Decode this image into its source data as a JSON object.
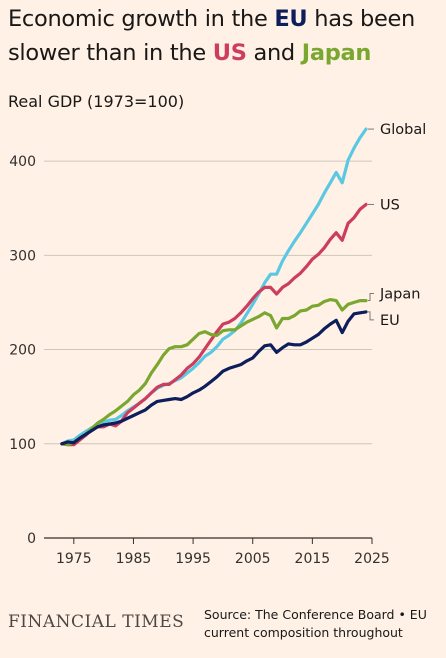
{
  "header": {
    "title_parts": [
      {
        "text": "Economic growth in the ",
        "color": ""
      },
      {
        "text": "EU",
        "color": "#0d1e5c"
      },
      {
        "text": " has been slower than in the ",
        "color": ""
      },
      {
        "text": "US",
        "color": "#cc3d5e"
      },
      {
        "text": " and ",
        "color": ""
      },
      {
        "text": "Japan",
        "color": "#7aa72f"
      }
    ],
    "subtitle": "Real GDP (1973=100)"
  },
  "footer": {
    "brand": "FINANCIAL TIMES",
    "source": "Source: The Conference Board • EU current composition throughout"
  },
  "chart_data": {
    "type": "line",
    "title": "Economic growth in the EU has been slower than in the US and Japan",
    "ylabel": "Real GDP (1973=100)",
    "xlim": [
      1970,
      2025
    ],
    "ylim": [
      0,
      450
    ],
    "x_ticks": [
      1975,
      1985,
      1995,
      2005,
      2015,
      2025
    ],
    "y_ticks": [
      0,
      100,
      200,
      300,
      400
    ],
    "grid": true,
    "legend": "direct labels at line ends",
    "series": [
      {
        "name": "Global",
        "color": "#5bc8e3",
        "points": [
          [
            1973,
            100
          ],
          [
            1974,
            103
          ],
          [
            1975,
            104
          ],
          [
            1976,
            109
          ],
          [
            1977,
            113
          ],
          [
            1978,
            117
          ],
          [
            1979,
            121
          ],
          [
            1980,
            123
          ],
          [
            1981,
            125
          ],
          [
            1982,
            126
          ],
          [
            1983,
            130
          ],
          [
            1984,
            135
          ],
          [
            1985,
            139
          ],
          [
            1986,
            143
          ],
          [
            1987,
            148
          ],
          [
            1988,
            154
          ],
          [
            1989,
            159
          ],
          [
            1990,
            162
          ],
          [
            1991,
            164
          ],
          [
            1992,
            167
          ],
          [
            1993,
            170
          ],
          [
            1994,
            175
          ],
          [
            1995,
            180
          ],
          [
            1996,
            186
          ],
          [
            1997,
            193
          ],
          [
            1998,
            197
          ],
          [
            1999,
            203
          ],
          [
            2000,
            211
          ],
          [
            2001,
            215
          ],
          [
            2002,
            220
          ],
          [
            2003,
            228
          ],
          [
            2004,
            238
          ],
          [
            2005,
            248
          ],
          [
            2006,
            259
          ],
          [
            2007,
            271
          ],
          [
            2008,
            280
          ],
          [
            2009,
            280
          ],
          [
            2010,
            294
          ],
          [
            2011,
            305
          ],
          [
            2012,
            315
          ],
          [
            2013,
            324
          ],
          [
            2014,
            334
          ],
          [
            2015,
            344
          ],
          [
            2016,
            354
          ],
          [
            2017,
            366
          ],
          [
            2018,
            377
          ],
          [
            2019,
            388
          ],
          [
            2020,
            377
          ],
          [
            2021,
            401
          ],
          [
            2022,
            414
          ],
          [
            2023,
            425
          ],
          [
            2024,
            434
          ]
        ]
      },
      {
        "name": "US",
        "color": "#cc3d5e",
        "points": [
          [
            1973,
            100
          ],
          [
            1974,
            99
          ],
          [
            1975,
            99
          ],
          [
            1976,
            104
          ],
          [
            1977,
            109
          ],
          [
            1978,
            115
          ],
          [
            1979,
            118
          ],
          [
            1980,
            118
          ],
          [
            1981,
            121
          ],
          [
            1982,
            119
          ],
          [
            1983,
            124
          ],
          [
            1984,
            133
          ],
          [
            1985,
            138
          ],
          [
            1986,
            143
          ],
          [
            1987,
            148
          ],
          [
            1988,
            154
          ],
          [
            1989,
            160
          ],
          [
            1990,
            163
          ],
          [
            1991,
            163
          ],
          [
            1992,
            168
          ],
          [
            1993,
            173
          ],
          [
            1994,
            180
          ],
          [
            1995,
            185
          ],
          [
            1996,
            192
          ],
          [
            1997,
            201
          ],
          [
            1998,
            210
          ],
          [
            1999,
            219
          ],
          [
            2000,
            227
          ],
          [
            2001,
            229
          ],
          [
            2002,
            233
          ],
          [
            2003,
            239
          ],
          [
            2004,
            246
          ],
          [
            2005,
            254
          ],
          [
            2006,
            261
          ],
          [
            2007,
            266
          ],
          [
            2008,
            266
          ],
          [
            2009,
            259
          ],
          [
            2010,
            266
          ],
          [
            2011,
            270
          ],
          [
            2012,
            276
          ],
          [
            2013,
            281
          ],
          [
            2014,
            288
          ],
          [
            2015,
            296
          ],
          [
            2016,
            301
          ],
          [
            2017,
            308
          ],
          [
            2018,
            317
          ],
          [
            2019,
            324
          ],
          [
            2020,
            316
          ],
          [
            2021,
            334
          ],
          [
            2022,
            340
          ],
          [
            2023,
            349
          ],
          [
            2024,
            354
          ]
        ]
      },
      {
        "name": "Japan",
        "color": "#7aa72f",
        "points": [
          [
            1973,
            100
          ],
          [
            1974,
            99
          ],
          [
            1975,
            102
          ],
          [
            1976,
            106
          ],
          [
            1977,
            110
          ],
          [
            1978,
            116
          ],
          [
            1979,
            122
          ],
          [
            1980,
            126
          ],
          [
            1981,
            131
          ],
          [
            1982,
            135
          ],
          [
            1983,
            140
          ],
          [
            1984,
            145
          ],
          [
            1985,
            152
          ],
          [
            1986,
            157
          ],
          [
            1987,
            164
          ],
          [
            1988,
            175
          ],
          [
            1989,
            184
          ],
          [
            1990,
            194
          ],
          [
            1991,
            201
          ],
          [
            1992,
            203
          ],
          [
            1993,
            203
          ],
          [
            1994,
            205
          ],
          [
            1995,
            211
          ],
          [
            1996,
            217
          ],
          [
            1997,
            219
          ],
          [
            1998,
            216
          ],
          [
            1999,
            215
          ],
          [
            2000,
            220
          ],
          [
            2001,
            221
          ],
          [
            2002,
            221
          ],
          [
            2003,
            225
          ],
          [
            2004,
            229
          ],
          [
            2005,
            232
          ],
          [
            2006,
            235
          ],
          [
            2007,
            239
          ],
          [
            2008,
            236
          ],
          [
            2009,
            223
          ],
          [
            2010,
            233
          ],
          [
            2011,
            233
          ],
          [
            2012,
            236
          ],
          [
            2013,
            241
          ],
          [
            2014,
            242
          ],
          [
            2015,
            246
          ],
          [
            2016,
            247
          ],
          [
            2017,
            251
          ],
          [
            2018,
            253
          ],
          [
            2019,
            252
          ],
          [
            2020,
            242
          ],
          [
            2021,
            248
          ],
          [
            2022,
            250
          ],
          [
            2023,
            252
          ],
          [
            2024,
            252
          ]
        ]
      },
      {
        "name": "EU",
        "color": "#0d1e5c",
        "points": [
          [
            1973,
            100
          ],
          [
            1974,
            102
          ],
          [
            1975,
            101
          ],
          [
            1976,
            106
          ],
          [
            1977,
            110
          ],
          [
            1978,
            114
          ],
          [
            1979,
            118
          ],
          [
            1980,
            120
          ],
          [
            1981,
            121
          ],
          [
            1982,
            122
          ],
          [
            1983,
            124
          ],
          [
            1984,
            127
          ],
          [
            1985,
            130
          ],
          [
            1986,
            133
          ],
          [
            1987,
            136
          ],
          [
            1988,
            141
          ],
          [
            1989,
            145
          ],
          [
            1990,
            146
          ],
          [
            1991,
            147
          ],
          [
            1992,
            148
          ],
          [
            1993,
            147
          ],
          [
            1994,
            150
          ],
          [
            1995,
            154
          ],
          [
            1996,
            157
          ],
          [
            1997,
            161
          ],
          [
            1998,
            166
          ],
          [
            1999,
            171
          ],
          [
            2000,
            177
          ],
          [
            2001,
            180
          ],
          [
            2002,
            182
          ],
          [
            2003,
            184
          ],
          [
            2004,
            188
          ],
          [
            2005,
            191
          ],
          [
            2006,
            198
          ],
          [
            2007,
            204
          ],
          [
            2008,
            205
          ],
          [
            2009,
            197
          ],
          [
            2010,
            202
          ],
          [
            2011,
            206
          ],
          [
            2012,
            205
          ],
          [
            2013,
            205
          ],
          [
            2014,
            208
          ],
          [
            2015,
            212
          ],
          [
            2016,
            216
          ],
          [
            2017,
            222
          ],
          [
            2018,
            227
          ],
          [
            2019,
            231
          ],
          [
            2020,
            218
          ],
          [
            2021,
            230
          ],
          [
            2022,
            238
          ],
          [
            2023,
            239
          ],
          [
            2024,
            240
          ]
        ]
      }
    ],
    "end_labels": [
      "Global",
      "US",
      "Japan",
      "EU"
    ]
  }
}
